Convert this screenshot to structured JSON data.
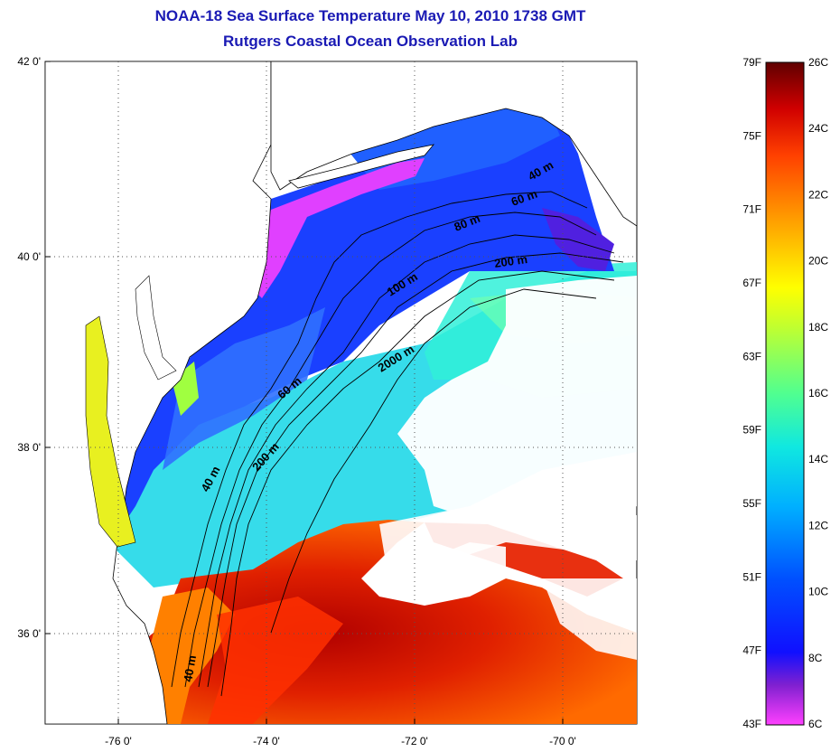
{
  "title": "NOAA-18 Sea Surface Temperature May 10, 2010 1738 GMT",
  "subtitle": "Rutgers Coastal Ocean Observation Lab",
  "map": {
    "lat_ticks": [
      "42 0'",
      "40 0'",
      "38 0'",
      "36 0'"
    ],
    "lon_ticks": [
      "-76 0'",
      "-74 0'",
      "-72 0'",
      "-70 0'"
    ],
    "lat_range": [
      35,
      42
    ],
    "lon_range": [
      -77,
      -69
    ]
  },
  "contour_labels": [
    "40 m",
    "60 m",
    "80 m",
    "200 m",
    "100 m",
    "2000 m",
    "60 m",
    "200 m",
    "40 m",
    "40 m"
  ],
  "colorbar": {
    "fahrenheit_labels": [
      "79F",
      "75F",
      "71F",
      "67F",
      "63F",
      "59F",
      "55F",
      "51F",
      "47F",
      "43F"
    ],
    "celsius_labels": [
      "26C",
      "24C",
      "22C",
      "20C",
      "18C",
      "16C",
      "14C",
      "12C",
      "10C",
      "8C",
      "6C"
    ],
    "range_c": [
      6,
      26
    ],
    "colors": [
      "#ff40ff",
      "#7a1fd6",
      "#1010ff",
      "#0040ff",
      "#0090ff",
      "#10e0e0",
      "#60ff80",
      "#c8ff30",
      "#ffff00",
      "#ffa000",
      "#ff5000",
      "#e00000",
      "#a00000",
      "#600000"
    ]
  }
}
